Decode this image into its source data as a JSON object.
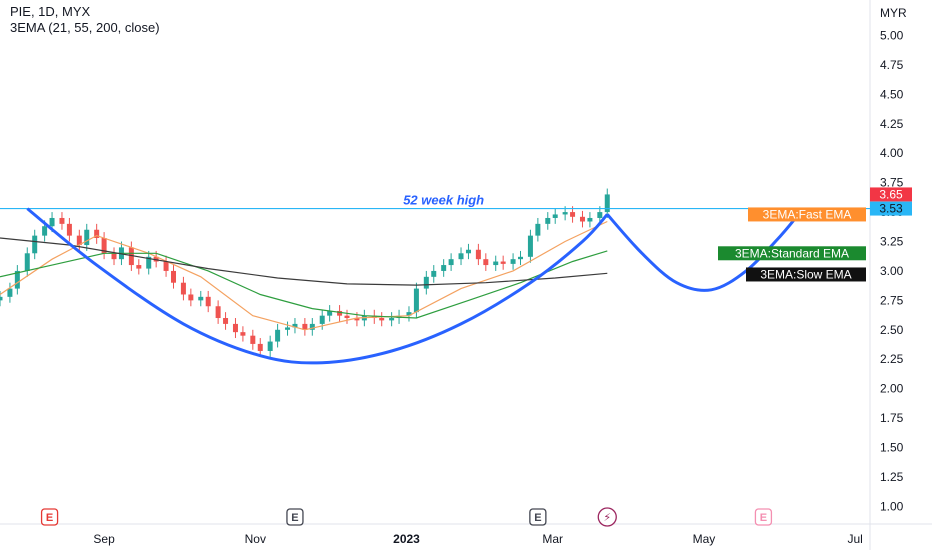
{
  "header": {
    "title": "PIE, 1D, MYX",
    "indicator": "3EMA (21, 55, 200, close)"
  },
  "colors": {
    "candle_up": "#26a69a",
    "candle_down": "#ef5350",
    "fast_ema": "#f4a261",
    "standard_ema": "#2e9e3f",
    "slow_ema": "#3b3b3b",
    "cup_handle": "#2962ff",
    "resistance": "#29b6f6",
    "label_fast_bg": "#ff8f2e",
    "label_standard_bg": "#1b8a2f",
    "label_slow_bg": "#111111",
    "tag_last_bg": "#f23645",
    "tag_level_bg": "#29b6f6"
  },
  "price_axis": {
    "currency": "MYX",
    "currency_label": "MYR"
  },
  "tags": {
    "last_price": "3.65",
    "level_price": "3.53",
    "fast": "3EMA:Fast EMA",
    "standard": "3EMA:Standard EMA",
    "slow": "3EMA:Slow EMA"
  },
  "annotations": {
    "resistance_label": "52 week high"
  },
  "events": [
    {
      "date": "2022-08-10",
      "type": "earnings",
      "label": "E",
      "status": "past-red"
    },
    {
      "date": "2022-11-17",
      "type": "earnings",
      "label": "E",
      "status": "past"
    },
    {
      "date": "2023-02-23",
      "type": "earnings",
      "label": "E",
      "status": "past"
    },
    {
      "date": "2023-03-23",
      "type": "dividend",
      "label": "⚡",
      "status": "past"
    },
    {
      "date": "2023-05-25",
      "type": "earnings",
      "label": "E",
      "status": "future"
    }
  ],
  "chart_data": {
    "type": "line",
    "title": "PIE, 1D, MYX",
    "ylim": [
      0.85,
      5.2
    ],
    "y_ticks": [
      "5.00",
      "4.75",
      "4.50",
      "4.25",
      "4.00",
      "3.75",
      "3.50",
      "3.25",
      "3.00",
      "2.75",
      "2.50",
      "2.25",
      "2.00",
      "1.75",
      "1.50",
      "1.25",
      "1.00"
    ],
    "x_ticks": [
      "Sep",
      "Nov",
      "2023",
      "Mar",
      "May",
      "Jul"
    ],
    "x_tick_dates": [
      "2022-09-01",
      "2022-11-01",
      "2023-01-01",
      "2023-03-01",
      "2023-05-01",
      "2023-07-01"
    ],
    "xlim": [
      "2022-07-21",
      "2023-07-07"
    ],
    "grid": false,
    "legend": "top-left",
    "candles": {
      "description_dates": "approximate closing prices read from the chart",
      "points": [
        [
          "2022-07-21",
          2.78
        ],
        [
          "2022-07-25",
          2.85
        ],
        [
          "2022-07-28",
          3.0
        ],
        [
          "2022-08-01",
          3.15
        ],
        [
          "2022-08-04",
          3.3
        ],
        [
          "2022-08-08",
          3.38
        ],
        [
          "2022-08-11",
          3.45
        ],
        [
          "2022-08-15",
          3.4
        ],
        [
          "2022-08-18",
          3.3
        ],
        [
          "2022-08-22",
          3.22
        ],
        [
          "2022-08-25",
          3.35
        ],
        [
          "2022-08-29",
          3.28
        ],
        [
          "2022-09-01",
          3.15
        ],
        [
          "2022-09-05",
          3.1
        ],
        [
          "2022-09-08",
          3.2
        ],
        [
          "2022-09-12",
          3.05
        ],
        [
          "2022-09-15",
          3.02
        ],
        [
          "2022-09-19",
          3.12
        ],
        [
          "2022-09-22",
          3.08
        ],
        [
          "2022-09-26",
          3.0
        ],
        [
          "2022-09-29",
          2.9
        ],
        [
          "2022-10-03",
          2.8
        ],
        [
          "2022-10-06",
          2.75
        ],
        [
          "2022-10-10",
          2.78
        ],
        [
          "2022-10-13",
          2.7
        ],
        [
          "2022-10-17",
          2.6
        ],
        [
          "2022-10-20",
          2.55
        ],
        [
          "2022-10-24",
          2.48
        ],
        [
          "2022-10-27",
          2.45
        ],
        [
          "2022-10-31",
          2.38
        ],
        [
          "2022-11-03",
          2.32
        ],
        [
          "2022-11-07",
          2.4
        ],
        [
          "2022-11-10",
          2.5
        ],
        [
          "2022-11-14",
          2.52
        ],
        [
          "2022-11-17",
          2.55
        ],
        [
          "2022-11-21",
          2.5
        ],
        [
          "2022-11-24",
          2.55
        ],
        [
          "2022-11-28",
          2.62
        ],
        [
          "2022-12-01",
          2.66
        ],
        [
          "2022-12-05",
          2.62
        ],
        [
          "2022-12-08",
          2.6
        ],
        [
          "2022-12-12",
          2.58
        ],
        [
          "2022-12-15",
          2.62
        ],
        [
          "2022-12-19",
          2.6
        ],
        [
          "2022-12-22",
          2.58
        ],
        [
          "2022-12-26",
          2.6
        ],
        [
          "2022-12-29",
          2.62
        ],
        [
          "2023-01-02",
          2.65
        ],
        [
          "2023-01-05",
          2.85
        ],
        [
          "2023-01-09",
          2.95
        ],
        [
          "2023-01-12",
          3.0
        ],
        [
          "2023-01-16",
          3.05
        ],
        [
          "2023-01-19",
          3.1
        ],
        [
          "2023-01-23",
          3.15
        ],
        [
          "2023-01-26",
          3.18
        ],
        [
          "2023-01-30",
          3.1
        ],
        [
          "2023-02-02",
          3.05
        ],
        [
          "2023-02-06",
          3.08
        ],
        [
          "2023-02-09",
          3.06
        ],
        [
          "2023-02-13",
          3.1
        ],
        [
          "2023-02-16",
          3.12
        ],
        [
          "2023-02-20",
          3.3
        ],
        [
          "2023-02-23",
          3.4
        ],
        [
          "2023-02-27",
          3.45
        ],
        [
          "2023-03-02",
          3.48
        ],
        [
          "2023-03-06",
          3.5
        ],
        [
          "2023-03-09",
          3.46
        ],
        [
          "2023-03-13",
          3.42
        ],
        [
          "2023-03-16",
          3.45
        ],
        [
          "2023-03-20",
          3.5
        ],
        [
          "2023-03-23",
          3.65
        ]
      ]
    },
    "series": [
      {
        "name": "3EMA:Fast EMA",
        "points": [
          [
            "2022-07-21",
            2.8
          ],
          [
            "2022-08-11",
            3.1
          ],
          [
            "2022-08-29",
            3.3
          ],
          [
            "2022-09-19",
            3.15
          ],
          [
            "2022-10-10",
            2.95
          ],
          [
            "2022-10-31",
            2.62
          ],
          [
            "2022-11-21",
            2.5
          ],
          [
            "2022-12-12",
            2.6
          ],
          [
            "2023-01-02",
            2.62
          ],
          [
            "2023-01-23",
            2.85
          ],
          [
            "2023-02-13",
            3.0
          ],
          [
            "2023-03-06",
            3.25
          ],
          [
            "2023-03-23",
            3.42
          ]
        ]
      },
      {
        "name": "3EMA:Standard EMA",
        "points": [
          [
            "2022-07-21",
            2.95
          ],
          [
            "2022-08-11",
            3.05
          ],
          [
            "2022-09-01",
            3.15
          ],
          [
            "2022-09-22",
            3.15
          ],
          [
            "2022-10-13",
            3.0
          ],
          [
            "2022-11-03",
            2.8
          ],
          [
            "2022-11-24",
            2.68
          ],
          [
            "2022-12-15",
            2.62
          ],
          [
            "2023-01-05",
            2.6
          ],
          [
            "2023-01-26",
            2.75
          ],
          [
            "2023-02-16",
            2.9
          ],
          [
            "2023-03-09",
            3.08
          ],
          [
            "2023-03-23",
            3.17
          ]
        ]
      },
      {
        "name": "3EMA:Slow EMA",
        "points": [
          [
            "2022-07-21",
            3.28
          ],
          [
            "2022-08-18",
            3.22
          ],
          [
            "2022-09-15",
            3.12
          ],
          [
            "2022-10-13",
            3.02
          ],
          [
            "2022-11-10",
            2.94
          ],
          [
            "2022-12-08",
            2.89
          ],
          [
            "2023-01-05",
            2.88
          ],
          [
            "2023-02-02",
            2.9
          ],
          [
            "2023-03-02",
            2.94
          ],
          [
            "2023-03-23",
            2.98
          ]
        ]
      }
    ],
    "drawings": {
      "resistance_level": 3.53,
      "cup": [
        [
          "2022-08-01",
          3.53
        ],
        [
          "2022-08-29",
          3.05
        ],
        [
          "2022-10-03",
          2.55
        ],
        [
          "2022-11-03",
          2.28
        ],
        [
          "2022-11-28",
          2.22
        ],
        [
          "2022-12-26",
          2.32
        ],
        [
          "2023-01-23",
          2.55
        ],
        [
          "2023-02-20",
          2.9
        ],
        [
          "2023-03-13",
          3.25
        ],
        [
          "2023-03-23",
          3.48
        ]
      ],
      "handle_projection": [
        [
          "2023-03-23",
          3.48
        ],
        [
          "2023-04-06",
          3.15
        ],
        [
          "2023-04-20",
          2.9
        ],
        [
          "2023-05-04",
          2.84
        ],
        [
          "2023-05-18",
          3.0
        ],
        [
          "2023-06-01",
          3.3
        ],
        [
          "2023-06-10",
          3.53
        ]
      ]
    }
  }
}
